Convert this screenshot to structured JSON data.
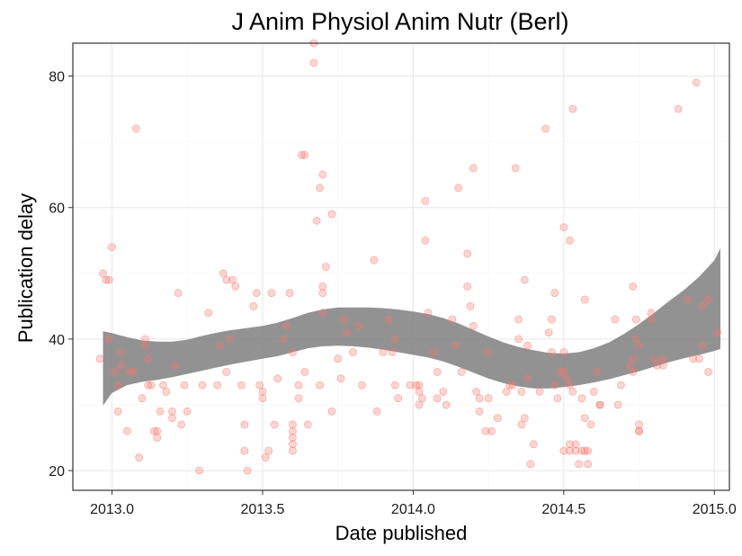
{
  "chart_data": {
    "type": "scatter",
    "title": "J Anim Physiol Anim Nutr (Berl)",
    "xlabel": "Date published",
    "ylabel": "Publication delay",
    "xlim": [
      2012.87,
      2015.05
    ],
    "ylim": [
      17,
      85
    ],
    "xticks": [
      2013.0,
      2013.5,
      2014.0,
      2014.5,
      2015.0
    ],
    "xtick_labels": [
      "2013.0",
      "2013.5",
      "2014.0",
      "2014.5",
      "2015.0"
    ],
    "yticks": [
      20,
      40,
      60,
      80
    ],
    "ytick_labels": [
      "20",
      "40",
      "60",
      "80"
    ],
    "grid": true,
    "point_color": "#f8766d",
    "ribbon_color": "#7f7f7f",
    "points": [
      [
        2012.97,
        50
      ],
      [
        2012.98,
        49
      ],
      [
        2012.99,
        49
      ],
      [
        2012.96,
        37
      ],
      [
        2012.99,
        40
      ],
      [
        2013.0,
        54
      ],
      [
        2013.01,
        35
      ],
      [
        2013.02,
        33
      ],
      [
        2013.02,
        29
      ],
      [
        2013.03,
        38
      ],
      [
        2013.03,
        36
      ],
      [
        2013.05,
        26
      ],
      [
        2013.06,
        35
      ],
      [
        2013.07,
        35
      ],
      [
        2013.08,
        72
      ],
      [
        2013.09,
        22
      ],
      [
        2013.1,
        31
      ],
      [
        2013.11,
        39
      ],
      [
        2013.11,
        40
      ],
      [
        2013.12,
        37
      ],
      [
        2013.12,
        33
      ],
      [
        2013.13,
        33
      ],
      [
        2013.14,
        26
      ],
      [
        2013.15,
        26
      ],
      [
        2013.15,
        25
      ],
      [
        2013.16,
        29
      ],
      [
        2013.17,
        33
      ],
      [
        2013.18,
        32
      ],
      [
        2013.2,
        28
      ],
      [
        2013.2,
        29
      ],
      [
        2013.21,
        36
      ],
      [
        2013.22,
        47
      ],
      [
        2013.23,
        27
      ],
      [
        2013.24,
        33
      ],
      [
        2013.25,
        29
      ],
      [
        2013.29,
        20
      ],
      [
        2013.3,
        33
      ],
      [
        2013.32,
        44
      ],
      [
        2013.35,
        33
      ],
      [
        2013.36,
        39
      ],
      [
        2013.37,
        50
      ],
      [
        2013.38,
        49
      ],
      [
        2013.38,
        35
      ],
      [
        2013.39,
        40
      ],
      [
        2013.4,
        49
      ],
      [
        2013.41,
        48
      ],
      [
        2013.43,
        33
      ],
      [
        2013.44,
        23
      ],
      [
        2013.44,
        27
      ],
      [
        2013.45,
        20
      ],
      [
        2013.47,
        45
      ],
      [
        2013.48,
        47
      ],
      [
        2013.49,
        33
      ],
      [
        2013.5,
        31
      ],
      [
        2013.5,
        32
      ],
      [
        2013.51,
        22
      ],
      [
        2013.52,
        23
      ],
      [
        2013.53,
        47
      ],
      [
        2013.54,
        27
      ],
      [
        2013.55,
        34
      ],
      [
        2013.57,
        40
      ],
      [
        2013.58,
        42
      ],
      [
        2013.59,
        47
      ],
      [
        2013.6,
        38
      ],
      [
        2013.6,
        27
      ],
      [
        2013.6,
        26
      ],
      [
        2013.6,
        25
      ],
      [
        2013.6,
        24
      ],
      [
        2013.6,
        23
      ],
      [
        2013.62,
        31
      ],
      [
        2013.62,
        33
      ],
      [
        2013.63,
        68
      ],
      [
        2013.64,
        68
      ],
      [
        2013.64,
        35
      ],
      [
        2013.65,
        27
      ],
      [
        2013.67,
        85
      ],
      [
        2013.67,
        82
      ],
      [
        2013.68,
        58
      ],
      [
        2013.69,
        33
      ],
      [
        2013.69,
        63
      ],
      [
        2013.7,
        65
      ],
      [
        2013.7,
        48
      ],
      [
        2013.7,
        47
      ],
      [
        2013.7,
        44
      ],
      [
        2013.71,
        51
      ],
      [
        2013.73,
        59
      ],
      [
        2013.73,
        29
      ],
      [
        2013.75,
        37
      ],
      [
        2013.76,
        34
      ],
      [
        2013.77,
        43
      ],
      [
        2013.78,
        41
      ],
      [
        2013.8,
        38
      ],
      [
        2013.82,
        42
      ],
      [
        2013.83,
        33
      ],
      [
        2013.87,
        52
      ],
      [
        2013.88,
        29
      ],
      [
        2013.9,
        38
      ],
      [
        2013.92,
        43
      ],
      [
        2013.93,
        38
      ],
      [
        2013.94,
        40
      ],
      [
        2013.94,
        33
      ],
      [
        2013.95,
        31
      ],
      [
        2013.99,
        33
      ],
      [
        2014.01,
        33
      ],
      [
        2014.02,
        32
      ],
      [
        2014.02,
        33
      ],
      [
        2014.02,
        30
      ],
      [
        2014.03,
        31
      ],
      [
        2014.04,
        61
      ],
      [
        2014.04,
        55
      ],
      [
        2014.05,
        44
      ],
      [
        2014.07,
        38
      ],
      [
        2014.08,
        35
      ],
      [
        2014.08,
        31
      ],
      [
        2014.1,
        32
      ],
      [
        2014.11,
        30
      ],
      [
        2014.13,
        43
      ],
      [
        2014.14,
        39
      ],
      [
        2014.15,
        63
      ],
      [
        2014.16,
        35
      ],
      [
        2014.18,
        53
      ],
      [
        2014.18,
        48
      ],
      [
        2014.19,
        45
      ],
      [
        2014.2,
        66
      ],
      [
        2014.2,
        42
      ],
      [
        2014.21,
        32
      ],
      [
        2014.22,
        29
      ],
      [
        2014.22,
        31
      ],
      [
        2014.24,
        26
      ],
      [
        2014.25,
        38
      ],
      [
        2014.25,
        31
      ],
      [
        2014.26,
        26
      ],
      [
        2014.28,
        28
      ],
      [
        2014.31,
        32
      ],
      [
        2014.32,
        33
      ],
      [
        2014.33,
        33
      ],
      [
        2014.34,
        66
      ],
      [
        2014.35,
        43
      ],
      [
        2014.35,
        40
      ],
      [
        2014.36,
        27
      ],
      [
        2014.36,
        32
      ],
      [
        2014.37,
        49
      ],
      [
        2014.37,
        28
      ],
      [
        2014.38,
        34
      ],
      [
        2014.38,
        39
      ],
      [
        2014.39,
        21
      ],
      [
        2014.4,
        24
      ],
      [
        2014.42,
        32
      ],
      [
        2014.44,
        72
      ],
      [
        2014.45,
        41
      ],
      [
        2014.46,
        43
      ],
      [
        2014.46,
        38
      ],
      [
        2014.47,
        47
      ],
      [
        2014.47,
        33
      ],
      [
        2014.48,
        31
      ],
      [
        2014.49,
        35
      ],
      [
        2014.5,
        57
      ],
      [
        2014.5,
        38
      ],
      [
        2014.5,
        35
      ],
      [
        2014.5,
        23
      ],
      [
        2014.51,
        34
      ],
      [
        2014.52,
        55
      ],
      [
        2014.52,
        33
      ],
      [
        2014.52,
        24
      ],
      [
        2014.52,
        23
      ],
      [
        2014.53,
        75
      ],
      [
        2014.53,
        32
      ],
      [
        2014.54,
        24
      ],
      [
        2014.54,
        23
      ],
      [
        2014.55,
        21
      ],
      [
        2014.56,
        31
      ],
      [
        2014.56,
        23
      ],
      [
        2014.57,
        46
      ],
      [
        2014.57,
        28
      ],
      [
        2014.57,
        23
      ],
      [
        2014.58,
        23
      ],
      [
        2014.58,
        21
      ],
      [
        2014.59,
        27
      ],
      [
        2014.6,
        32
      ],
      [
        2014.61,
        35
      ],
      [
        2014.62,
        30
      ],
      [
        2014.62,
        30
      ],
      [
        2014.67,
        43
      ],
      [
        2014.68,
        30
      ],
      [
        2014.69,
        33
      ],
      [
        2014.72,
        36
      ],
      [
        2014.73,
        48
      ],
      [
        2014.73,
        37
      ],
      [
        2014.73,
        35
      ],
      [
        2014.74,
        43
      ],
      [
        2014.74,
        40
      ],
      [
        2014.75,
        39
      ],
      [
        2014.75,
        27
      ],
      [
        2014.75,
        26
      ],
      [
        2014.75,
        26
      ],
      [
        2014.79,
        44
      ],
      [
        2014.79,
        43
      ],
      [
        2014.8,
        37
      ],
      [
        2014.81,
        36
      ],
      [
        2014.83,
        37
      ],
      [
        2014.83,
        36
      ],
      [
        2014.88,
        75
      ],
      [
        2014.91,
        46
      ],
      [
        2014.93,
        37
      ],
      [
        2014.94,
        79
      ],
      [
        2014.95,
        37
      ],
      [
        2014.96,
        39
      ],
      [
        2014.96,
        45
      ],
      [
        2014.98,
        46
      ],
      [
        2014.98,
        35
      ],
      [
        2015.01,
        41
      ]
    ],
    "smooth_upper": [
      [
        2012.97,
        41.2
      ],
      [
        2013.0,
        40.9
      ],
      [
        2013.05,
        40.3
      ],
      [
        2013.1,
        39.8
      ],
      [
        2013.15,
        39.6
      ],
      [
        2013.2,
        39.6
      ],
      [
        2013.25,
        39.9
      ],
      [
        2013.3,
        40.5
      ],
      [
        2013.35,
        41.0
      ],
      [
        2013.4,
        41.4
      ],
      [
        2013.45,
        41.7
      ],
      [
        2013.5,
        42.0
      ],
      [
        2013.55,
        42.5
      ],
      [
        2013.6,
        43.2
      ],
      [
        2013.65,
        44.0
      ],
      [
        2013.7,
        44.5
      ],
      [
        2013.75,
        44.8
      ],
      [
        2013.8,
        44.8
      ],
      [
        2013.85,
        44.8
      ],
      [
        2013.9,
        44.7
      ],
      [
        2013.95,
        44.5
      ],
      [
        2014.0,
        44.2
      ],
      [
        2014.05,
        43.8
      ],
      [
        2014.1,
        43.2
      ],
      [
        2014.15,
        42.4
      ],
      [
        2014.2,
        41.4
      ],
      [
        2014.25,
        40.4
      ],
      [
        2014.3,
        39.5
      ],
      [
        2014.35,
        38.8
      ],
      [
        2014.4,
        38.3
      ],
      [
        2014.45,
        37.9
      ],
      [
        2014.5,
        37.8
      ],
      [
        2014.55,
        38.0
      ],
      [
        2014.6,
        38.6
      ],
      [
        2014.65,
        39.5
      ],
      [
        2014.7,
        40.8
      ],
      [
        2014.75,
        42.3
      ],
      [
        2014.8,
        44.0
      ],
      [
        2014.85,
        45.8
      ],
      [
        2014.9,
        47.5
      ],
      [
        2014.95,
        49.5
      ],
      [
        2015.0,
        52.0
      ],
      [
        2015.02,
        53.8
      ]
    ],
    "smooth_lower": [
      [
        2012.97,
        29.9
      ],
      [
        2013.0,
        31.8
      ],
      [
        2013.05,
        33.0
      ],
      [
        2013.1,
        33.5
      ],
      [
        2013.15,
        33.8
      ],
      [
        2013.2,
        34.2
      ],
      [
        2013.25,
        34.7
      ],
      [
        2013.3,
        35.2
      ],
      [
        2013.35,
        35.7
      ],
      [
        2013.4,
        36.2
      ],
      [
        2013.45,
        36.6
      ],
      [
        2013.5,
        37.0
      ],
      [
        2013.55,
        37.4
      ],
      [
        2013.6,
        38.0
      ],
      [
        2013.65,
        38.6
      ],
      [
        2013.7,
        38.9
      ],
      [
        2013.75,
        39.0
      ],
      [
        2013.8,
        38.9
      ],
      [
        2013.85,
        38.7
      ],
      [
        2013.9,
        38.4
      ],
      [
        2013.95,
        38.0
      ],
      [
        2014.0,
        37.6
      ],
      [
        2014.05,
        37.2
      ],
      [
        2014.1,
        36.6
      ],
      [
        2014.15,
        35.8
      ],
      [
        2014.2,
        34.9
      ],
      [
        2014.25,
        34.0
      ],
      [
        2014.3,
        33.3
      ],
      [
        2014.35,
        32.8
      ],
      [
        2014.4,
        32.5
      ],
      [
        2014.45,
        32.5
      ],
      [
        2014.5,
        32.7
      ],
      [
        2014.55,
        33.0
      ],
      [
        2014.6,
        33.4
      ],
      [
        2014.65,
        33.9
      ],
      [
        2014.7,
        34.5
      ],
      [
        2014.75,
        35.1
      ],
      [
        2014.8,
        35.8
      ],
      [
        2014.85,
        36.5
      ],
      [
        2014.9,
        37.1
      ],
      [
        2014.95,
        37.6
      ],
      [
        2015.0,
        38.2
      ],
      [
        2015.02,
        38.5
      ]
    ]
  }
}
